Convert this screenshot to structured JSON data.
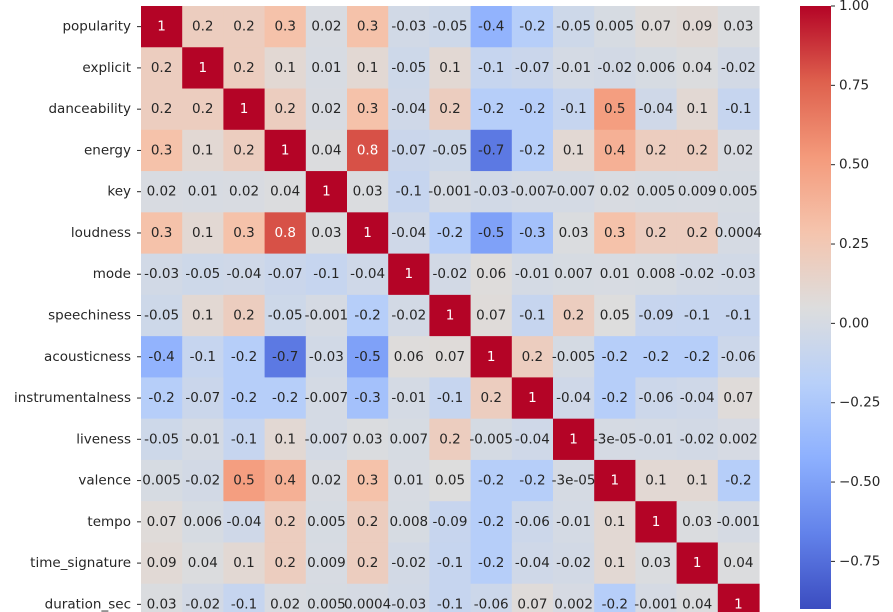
{
  "chart_data": {
    "type": "heatmap",
    "title": "",
    "xlabel": "",
    "ylabel": "",
    "labels": [
      "popularity",
      "explicit",
      "danceability",
      "energy",
      "key",
      "loudness",
      "mode",
      "speechiness",
      "acousticness",
      "instrumentalness",
      "liveness",
      "valence",
      "tempo",
      "time_signature",
      "duration_sec"
    ],
    "annotations": [
      [
        "1",
        "0.2",
        "0.2",
        "0.3",
        "0.02",
        "0.3",
        "-0.03",
        "-0.05",
        "-0.4",
        "-0.2",
        "-0.05",
        "0.005",
        "0.07",
        "0.09",
        "0.03"
      ],
      [
        "0.2",
        "1",
        "0.2",
        "0.1",
        "0.01",
        "0.1",
        "-0.05",
        "0.1",
        "-0.1",
        "-0.07",
        "-0.01",
        "-0.02",
        "0.006",
        "0.04",
        "-0.02"
      ],
      [
        "0.2",
        "0.2",
        "1",
        "0.2",
        "0.02",
        "0.3",
        "-0.04",
        "0.2",
        "-0.2",
        "-0.2",
        "-0.1",
        "0.5",
        "-0.04",
        "0.1",
        "-0.1"
      ],
      [
        "0.3",
        "0.1",
        "0.2",
        "1",
        "0.04",
        "0.8",
        "-0.07",
        "-0.05",
        "-0.7",
        "-0.2",
        "0.1",
        "0.4",
        "0.2",
        "0.2",
        "0.02"
      ],
      [
        "0.02",
        "0.01",
        "0.02",
        "0.04",
        "1",
        "0.03",
        "-0.1",
        "-0.001",
        "-0.03",
        "-0.007",
        "-0.007",
        "0.02",
        "0.005",
        "0.009",
        "0.005"
      ],
      [
        "0.3",
        "0.1",
        "0.3",
        "0.8",
        "0.03",
        "1",
        "-0.04",
        "-0.2",
        "-0.5",
        "-0.3",
        "0.03",
        "0.3",
        "0.2",
        "0.2",
        "0.0004"
      ],
      [
        "-0.03",
        "-0.05",
        "-0.04",
        "-0.07",
        "-0.1",
        "-0.04",
        "1",
        "-0.02",
        "0.06",
        "-0.01",
        "0.007",
        "0.01",
        "0.008",
        "-0.02",
        "-0.03"
      ],
      [
        "-0.05",
        "0.1",
        "0.2",
        "-0.05",
        "-0.001",
        "-0.2",
        "-0.02",
        "1",
        "0.07",
        "-0.1",
        "0.2",
        "0.05",
        "-0.09",
        "-0.1",
        "-0.1"
      ],
      [
        "-0.4",
        "-0.1",
        "-0.2",
        "-0.7",
        "-0.03",
        "-0.5",
        "0.06",
        "0.07",
        "1",
        "0.2",
        "-0.005",
        "-0.2",
        "-0.2",
        "-0.2",
        "-0.06"
      ],
      [
        "-0.2",
        "-0.07",
        "-0.2",
        "-0.2",
        "-0.007",
        "-0.3",
        "-0.01",
        "-0.1",
        "0.2",
        "1",
        "-0.04",
        "-0.2",
        "-0.06",
        "-0.04",
        "0.07"
      ],
      [
        "-0.05",
        "-0.01",
        "-0.1",
        "0.1",
        "-0.007",
        "0.03",
        "0.007",
        "0.2",
        "-0.005",
        "-0.04",
        "1",
        "-3e-05",
        "-0.01",
        "-0.02",
        "0.002"
      ],
      [
        "0.005",
        "-0.02",
        "0.5",
        "0.4",
        "0.02",
        "0.3",
        "0.01",
        "0.05",
        "-0.2",
        "-0.2",
        "-3e-05",
        "1",
        "0.1",
        "0.1",
        "-0.2"
      ],
      [
        "0.07",
        "0.006",
        "-0.04",
        "0.2",
        "0.005",
        "0.2",
        "0.008",
        "-0.09",
        "-0.2",
        "-0.06",
        "-0.01",
        "0.1",
        "1",
        "0.03",
        "-0.001"
      ],
      [
        "0.09",
        "0.04",
        "0.1",
        "0.2",
        "0.009",
        "0.2",
        "-0.02",
        "-0.1",
        "-0.2",
        "-0.04",
        "-0.02",
        "0.1",
        "0.03",
        "1",
        "0.04"
      ],
      [
        "0.03",
        "-0.02",
        "-0.1",
        "0.02",
        "0.005",
        "0.0004",
        "-0.03",
        "-0.1",
        "-0.06",
        "0.07",
        "0.002",
        "-0.2",
        "-0.001",
        "0.04",
        "1"
      ]
    ],
    "colorbar": {
      "colormap": "coolwarm",
      "range": [
        -0.9,
        1.0
      ],
      "ticks": [
        1.0,
        0.75,
        0.5,
        0.25,
        0.0,
        -0.25,
        -0.5,
        -0.75
      ],
      "tick_labels": [
        "1.00",
        "0.75",
        "0.50",
        "0.25",
        "0.00",
        "−0.25",
        "−0.50",
        "−0.75"
      ]
    },
    "grid": false,
    "legend": "colorbar-right"
  }
}
